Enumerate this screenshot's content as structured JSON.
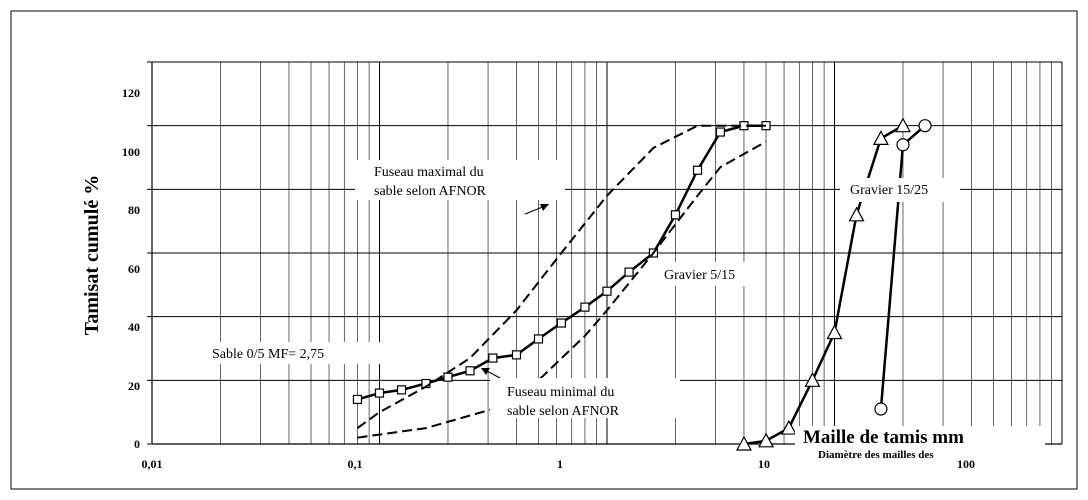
{
  "chart_data": {
    "type": "line",
    "xscale": "log",
    "xlim": [
      0.01,
      100
    ],
    "ylim": [
      0,
      120
    ],
    "grid": true,
    "ylabel": "Tamisat cumulé %",
    "xlabel": "Maille de tamis mm",
    "xlabel_sub": "Diamètre des mailles des",
    "x_ticks": [
      "0,01",
      "0,1",
      "1",
      "10",
      "100"
    ],
    "y_ticks": [
      "0",
      "20",
      "40",
      "60",
      "80",
      "100",
      "120"
    ],
    "annotations": {
      "fuseau_max": [
        "Fuseau maximal du",
        "sable selon AFNOR"
      ],
      "fuseau_min": [
        "Fuseau minimal du",
        "sable selon AFNOR"
      ],
      "sable": "Sable 0/5 MF= 2,75",
      "gravier_5_15": "Gravier 5/15",
      "gravier_15_25": "Gravier 15/25"
    },
    "series": [
      {
        "marker": "square",
        "style": "solid",
        "points": [
          [
            0.08,
            14
          ],
          [
            0.1,
            16
          ],
          [
            0.125,
            17
          ],
          [
            0.16,
            19
          ],
          [
            0.2,
            21
          ],
          [
            0.25,
            23
          ],
          [
            0.315,
            27
          ],
          [
            0.4,
            28
          ],
          [
            0.5,
            33
          ],
          [
            0.63,
            38
          ],
          [
            0.8,
            43
          ],
          [
            1,
            48
          ],
          [
            1.25,
            54
          ],
          [
            1.6,
            60
          ],
          [
            2,
            72
          ],
          [
            2.5,
            86
          ],
          [
            3.15,
            98
          ],
          [
            4,
            100
          ],
          [
            5,
            100
          ]
        ]
      },
      {
        "marker": "triangle",
        "style": "solid",
        "points": [
          [
            4,
            0
          ],
          [
            5,
            1
          ],
          [
            6.3,
            5
          ],
          [
            8,
            20
          ],
          [
            10,
            35
          ],
          [
            12.5,
            72
          ],
          [
            16,
            96
          ],
          [
            20,
            100
          ]
        ]
      },
      {
        "marker": "circle",
        "style": "solid",
        "points": [
          [
            16,
            11
          ],
          [
            20,
            94
          ],
          [
            25,
            100
          ]
        ]
      },
      {
        "marker": "none",
        "style": "dash",
        "points": [
          [
            0.08,
            5
          ],
          [
            0.1,
            10
          ],
          [
            0.16,
            18
          ],
          [
            0.25,
            27
          ],
          [
            0.4,
            42
          ],
          [
            0.63,
            60
          ],
          [
            1,
            78
          ],
          [
            1.6,
            93
          ],
          [
            2.5,
            100
          ],
          [
            5,
            100
          ]
        ]
      },
      {
        "marker": "none",
        "style": "dash",
        "points": [
          [
            0.08,
            2
          ],
          [
            0.16,
            5
          ],
          [
            0.315,
            11
          ],
          [
            0.5,
            20
          ],
          [
            0.8,
            34
          ],
          [
            1,
            42
          ],
          [
            1.6,
            60
          ],
          [
            2.5,
            78
          ],
          [
            3.15,
            87
          ],
          [
            5,
            95
          ]
        ]
      }
    ]
  }
}
